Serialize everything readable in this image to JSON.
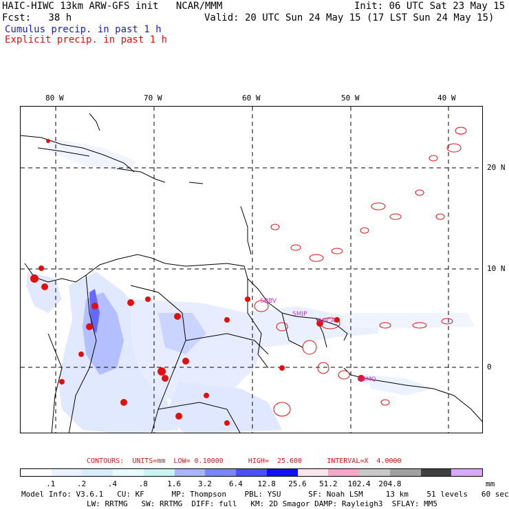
{
  "header": {
    "model_line": "HAIC-HIWC 13km ARW-GFS init   NCAR/MMM",
    "init_line": "Init: 06 UTC Sat 23 May 15",
    "fcst_line": "Fcst:   38 h",
    "valid_line": "Valid: 20 UTC Sun 24 May 15 (17 LST Sun 24 May 15)",
    "cumulus_label": "Cumulus precip. in past 1 h",
    "explicit_label": "Explicit precip. in past 1 h"
  },
  "map": {
    "lon_labels": [
      "80 W",
      "70 W",
      "60 W",
      "50 W",
      "40 W"
    ],
    "lat_labels": [
      "20 N",
      "10 N",
      "0"
    ],
    "station_labels": [
      "SBBV",
      "SMJP",
      "SOCA",
      "SBMQ"
    ]
  },
  "contours_text": "CONTOURS:  UNITS=mm  LOW= 0.10000      HIGH=  25.600      INTERVAL=X  4.0000",
  "colorbar": {
    "colors": [
      "#ffffff",
      "#eaf2ff",
      "#d6ecff",
      "#e6fbfb",
      "#c8f4f4",
      "#a8b4ff",
      "#7a86ff",
      "#4b50ff",
      "#1010ff",
      "#fbe6ec",
      "#f7a6c8",
      "#c8c8c8",
      "#a0a0a0",
      "#404040",
      "#d8a8ff"
    ],
    "labels": [
      ".1",
      ".2",
      ".4",
      ".8",
      "1.6",
      "3.2",
      "6.4",
      "12.8",
      "25.6",
      "51.2",
      "102.4",
      "204.8",
      "mm"
    ]
  },
  "info": {
    "line1": "Model Info: V3.6.1   CU: KF      MP: Thompson    PBL: YSU      SF: Noah LSM     13 km    51 levels   60 sec",
    "line2": "LW: RRTMG   SW: RRTMG  DIFF: full   KM: 2D Smagor DAMP: Rayleigh3  SFLAY: MM5"
  },
  "colors": {
    "explicit_red": "#e01010",
    "cumulus_blue": "#1a1ad0",
    "coast": "#000000"
  }
}
